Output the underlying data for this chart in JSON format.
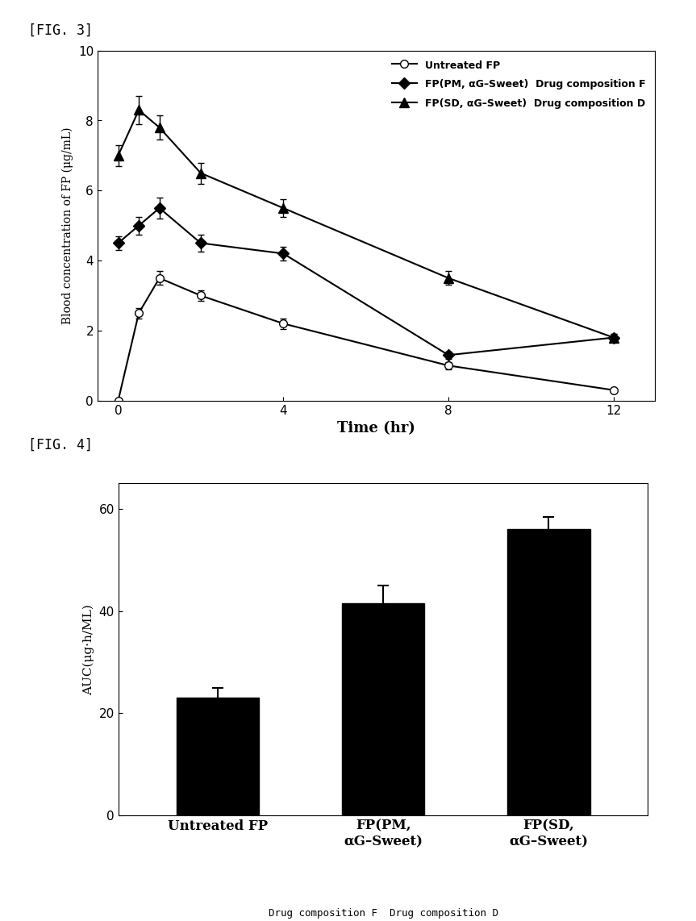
{
  "fig3_label": "[FIG. 3]",
  "fig4_label": "[FIG. 4]",
  "line_times": [
    0,
    0.5,
    1,
    2,
    4,
    8,
    12
  ],
  "untreated_fp_y": [
    0.0,
    2.5,
    3.5,
    3.0,
    2.2,
    1.0,
    0.3
  ],
  "untreated_fp_err": [
    0.0,
    0.15,
    0.2,
    0.15,
    0.15,
    0.1,
    0.05
  ],
  "pm_sweet_y": [
    4.5,
    5.0,
    5.5,
    4.5,
    4.2,
    1.3,
    1.8
  ],
  "pm_sweet_err": [
    0.2,
    0.25,
    0.3,
    0.25,
    0.2,
    0.1,
    0.1
  ],
  "sd_sweet_y": [
    7.0,
    8.3,
    7.8,
    6.5,
    5.5,
    3.5,
    1.8
  ],
  "sd_sweet_err": [
    0.3,
    0.4,
    0.35,
    0.3,
    0.25,
    0.2,
    0.1
  ],
  "ylim_line": [
    0,
    10
  ],
  "yticks_line": [
    0,
    2,
    4,
    6,
    8,
    10
  ],
  "xticks_line": [
    0,
    4,
    8,
    12
  ],
  "xlabel_line": "Time (hr)",
  "ylabel_line": "Blood concentration of FP (μg/mL)",
  "bar_values": [
    23.0,
    41.5,
    56.0
  ],
  "bar_errors": [
    2.0,
    3.5,
    2.5
  ],
  "ylim_bar": [
    0,
    65
  ],
  "yticks_bar": [
    0,
    20,
    40,
    60
  ],
  "ylabel_bar": "AUC(μg·h/ML)",
  "xlabel_bar_bottom": "Drug composition F  Drug composition D"
}
